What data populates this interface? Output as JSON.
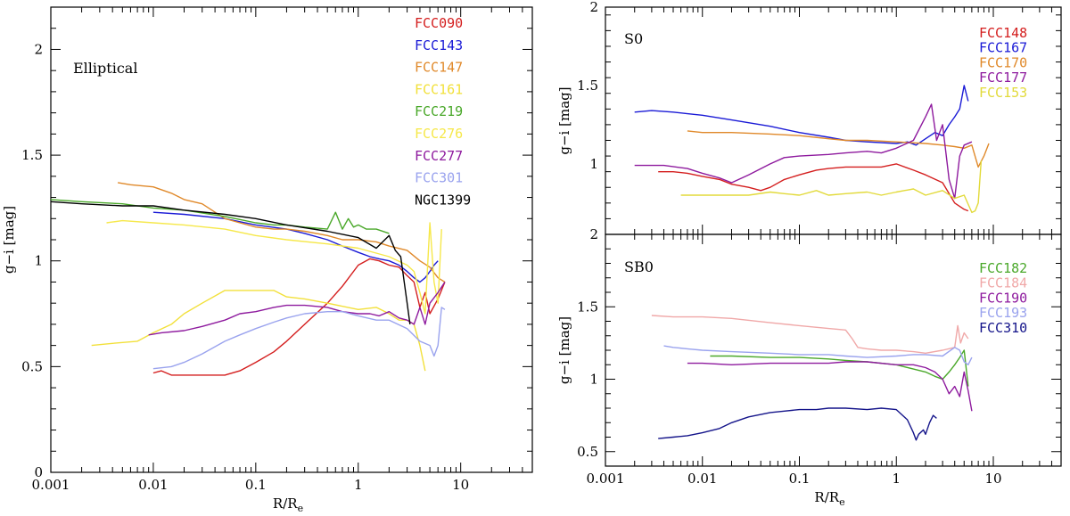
{
  "chart_data": [
    {
      "type": "line",
      "panel_label": "Elliptical",
      "xlabel": "R/R",
      "xlabel_sub": "e",
      "ylabel": "g−i [mag]",
      "xscale": "log",
      "xlim": [
        0.001,
        50
      ],
      "ylim": [
        0,
        2.2
      ],
      "xticks": [
        0.001,
        0.01,
        0.1,
        1,
        10
      ],
      "xtick_labels": [
        "0.001",
        "0.01",
        "0.1",
        "1",
        "10"
      ],
      "yticks": [
        0,
        0.5,
        1,
        1.5,
        2
      ],
      "ytick_labels": [
        "0",
        "0.5",
        "1",
        "1.5",
        "2"
      ],
      "legend_position": "top-right",
      "series": [
        {
          "name": "FCC090",
          "color": "#d41e1e",
          "x": [
            0.01,
            0.012,
            0.015,
            0.02,
            0.03,
            0.05,
            0.07,
            0.1,
            0.15,
            0.2,
            0.3,
            0.5,
            0.7,
            1.0,
            1.3,
            1.6,
            2.0,
            2.5,
            3.0,
            3.5,
            4.0,
            4.5,
            5.0,
            6.0,
            7.0
          ],
          "y": [
            0.47,
            0.48,
            0.46,
            0.46,
            0.46,
            0.46,
            0.48,
            0.52,
            0.57,
            0.62,
            0.7,
            0.8,
            0.88,
            0.98,
            1.01,
            1.0,
            0.98,
            0.97,
            0.93,
            0.9,
            0.78,
            0.85,
            0.75,
            0.82,
            0.9
          ]
        },
        {
          "name": "FCC143",
          "color": "#1a1ad6",
          "x": [
            0.01,
            0.02,
            0.05,
            0.1,
            0.2,
            0.3,
            0.5,
            0.7,
            1.0,
            1.3,
            1.6,
            2.0,
            2.5,
            3.0,
            3.5,
            4.0,
            4.5,
            5.0,
            5.5,
            6.0
          ],
          "y": [
            1.23,
            1.22,
            1.2,
            1.17,
            1.15,
            1.13,
            1.1,
            1.07,
            1.04,
            1.02,
            1.01,
            1.0,
            0.98,
            0.95,
            0.92,
            0.9,
            0.92,
            0.95,
            0.98,
            1.0
          ]
        },
        {
          "name": "FCC147",
          "color": "#e0892a",
          "x": [
            0.0045,
            0.006,
            0.01,
            0.015,
            0.02,
            0.03,
            0.05,
            0.07,
            0.1,
            0.15,
            0.2,
            0.3,
            0.5,
            0.7,
            1.0,
            1.5,
            2.0,
            3.0,
            4.0,
            5.0,
            6.0,
            7.0
          ],
          "y": [
            1.37,
            1.36,
            1.35,
            1.32,
            1.29,
            1.27,
            1.2,
            1.18,
            1.16,
            1.15,
            1.15,
            1.14,
            1.12,
            1.1,
            1.1,
            1.09,
            1.07,
            1.05,
            1.0,
            0.97,
            0.92,
            0.9
          ]
        },
        {
          "name": "FCC161",
          "color": "#f2e03a",
          "x": [
            0.0025,
            0.004,
            0.007,
            0.01,
            0.015,
            0.02,
            0.03,
            0.05,
            0.07,
            0.1,
            0.15,
            0.2,
            0.3,
            0.5,
            1.0,
            1.5,
            2.0,
            2.5,
            3.0,
            3.5,
            4.0,
            4.5
          ],
          "y": [
            0.6,
            0.61,
            0.62,
            0.66,
            0.7,
            0.75,
            0.8,
            0.86,
            0.86,
            0.86,
            0.86,
            0.83,
            0.82,
            0.8,
            0.77,
            0.78,
            0.75,
            0.72,
            0.72,
            0.7,
            0.6,
            0.48
          ]
        },
        {
          "name": "FCC219",
          "color": "#4aa82a",
          "x": [
            0.001,
            0.002,
            0.005,
            0.01,
            0.02,
            0.05,
            0.1,
            0.15,
            0.2,
            0.3,
            0.5,
            0.6,
            0.7,
            0.8,
            0.9,
            1.0,
            1.2,
            1.5,
            2.0
          ],
          "y": [
            1.29,
            1.28,
            1.27,
            1.25,
            1.24,
            1.21,
            1.18,
            1.17,
            1.17,
            1.16,
            1.15,
            1.23,
            1.15,
            1.2,
            1.16,
            1.17,
            1.15,
            1.15,
            1.13
          ]
        },
        {
          "name": "FCC276",
          "color": "#f6e84a",
          "x": [
            0.0035,
            0.005,
            0.01,
            0.02,
            0.05,
            0.1,
            0.2,
            0.5,
            1.0,
            2.0,
            3.0,
            3.5,
            4.0,
            4.5,
            5.0,
            5.5,
            6.0,
            6.5
          ],
          "y": [
            1.18,
            1.19,
            1.18,
            1.17,
            1.15,
            1.12,
            1.1,
            1.08,
            1.06,
            1.02,
            0.98,
            0.95,
            0.85,
            0.75,
            1.18,
            0.9,
            0.8,
            1.15
          ]
        },
        {
          "name": "FCC277",
          "color": "#8e1a9e",
          "x": [
            0.009,
            0.012,
            0.02,
            0.03,
            0.05,
            0.07,
            0.1,
            0.15,
            0.2,
            0.3,
            0.5,
            0.7,
            1.0,
            1.3,
            1.6,
            2.0,
            2.5,
            3.0,
            3.5,
            4.0,
            4.5,
            5.0,
            6.0,
            7.0
          ],
          "y": [
            0.65,
            0.66,
            0.67,
            0.69,
            0.72,
            0.75,
            0.76,
            0.78,
            0.79,
            0.79,
            0.78,
            0.76,
            0.75,
            0.75,
            0.74,
            0.76,
            0.73,
            0.72,
            0.7,
            0.78,
            0.7,
            0.8,
            0.85,
            0.9
          ]
        },
        {
          "name": "FCC301",
          "color": "#9aa3ee",
          "x": [
            0.01,
            0.015,
            0.02,
            0.03,
            0.05,
            0.07,
            0.1,
            0.15,
            0.2,
            0.3,
            0.5,
            0.7,
            1.0,
            1.5,
            2.0,
            3.0,
            4.0,
            5.0,
            5.5,
            6.0,
            6.5,
            7.0
          ],
          "y": [
            0.49,
            0.5,
            0.52,
            0.56,
            0.62,
            0.65,
            0.68,
            0.71,
            0.73,
            0.75,
            0.76,
            0.76,
            0.74,
            0.72,
            0.72,
            0.68,
            0.62,
            0.6,
            0.55,
            0.6,
            0.78,
            0.77
          ]
        },
        {
          "name": "NGC1399",
          "color": "#000000",
          "x": [
            0.001,
            0.002,
            0.005,
            0.01,
            0.02,
            0.05,
            0.1,
            0.2,
            0.5,
            1.0,
            1.5,
            2.0,
            2.3,
            2.6,
            3.0,
            3.2
          ],
          "y": [
            1.28,
            1.27,
            1.26,
            1.26,
            1.24,
            1.22,
            1.2,
            1.17,
            1.14,
            1.11,
            1.06,
            1.12,
            1.05,
            1.02,
            0.8,
            0.7
          ]
        }
      ]
    },
    {
      "type": "line",
      "panel_label": "S0",
      "xlabel": "",
      "ylabel": "g−i [mag]",
      "xscale": "log",
      "xlim": [
        0.001,
        50
      ],
      "ylim": [
        0.55,
        2.0
      ],
      "xticks": [
        0.001,
        0.01,
        0.1,
        1,
        10
      ],
      "yticks": [
        1,
        1.5,
        2
      ],
      "ytick_labels": [
        "1",
        "1.5",
        "2"
      ],
      "legend_position": "top-right",
      "series": [
        {
          "name": "FCC148",
          "color": "#d41e1e",
          "x": [
            0.0035,
            0.005,
            0.007,
            0.01,
            0.015,
            0.02,
            0.03,
            0.04,
            0.05,
            0.07,
            0.1,
            0.15,
            0.2,
            0.3,
            0.5,
            0.7,
            1.0,
            1.5,
            2.0,
            3.0,
            4.0,
            5.0,
            5.5
          ],
          "y": [
            0.95,
            0.95,
            0.94,
            0.92,
            0.9,
            0.87,
            0.85,
            0.83,
            0.85,
            0.9,
            0.93,
            0.96,
            0.97,
            0.98,
            0.98,
            0.98,
            1.0,
            0.96,
            0.93,
            0.88,
            0.75,
            0.71,
            0.7
          ]
        },
        {
          "name": "FCC167",
          "color": "#1a1ad6",
          "x": [
            0.002,
            0.003,
            0.005,
            0.007,
            0.01,
            0.02,
            0.05,
            0.1,
            0.2,
            0.3,
            0.5,
            1.0,
            1.3,
            1.6,
            2.0,
            2.5,
            3.0,
            3.5,
            4.0,
            4.5,
            5.0,
            5.5
          ],
          "y": [
            1.33,
            1.34,
            1.33,
            1.32,
            1.31,
            1.28,
            1.24,
            1.2,
            1.17,
            1.15,
            1.14,
            1.13,
            1.14,
            1.12,
            1.16,
            1.2,
            1.18,
            1.25,
            1.3,
            1.35,
            1.5,
            1.4
          ]
        },
        {
          "name": "FCC170",
          "color": "#e0892a",
          "x": [
            0.007,
            0.01,
            0.02,
            0.05,
            0.1,
            0.2,
            0.3,
            0.5,
            1.0,
            2.0,
            3.0,
            4.0,
            5.0,
            6.0,
            7.0,
            8.0,
            9.0
          ],
          "y": [
            1.21,
            1.2,
            1.2,
            1.19,
            1.18,
            1.16,
            1.15,
            1.15,
            1.14,
            1.13,
            1.12,
            1.11,
            1.1,
            1.12,
            0.98,
            1.05,
            1.13
          ]
        },
        {
          "name": "FCC177",
          "color": "#8e1a9e",
          "x": [
            0.002,
            0.004,
            0.007,
            0.01,
            0.015,
            0.02,
            0.03,
            0.05,
            0.07,
            0.1,
            0.2,
            0.3,
            0.5,
            0.7,
            1.0,
            1.5,
            2.0,
            2.3,
            2.6,
            3.0,
            3.5,
            4.0,
            4.5,
            5.0,
            6.0
          ],
          "y": [
            0.99,
            0.99,
            0.97,
            0.94,
            0.91,
            0.88,
            0.93,
            1.0,
            1.04,
            1.05,
            1.06,
            1.07,
            1.08,
            1.07,
            1.1,
            1.15,
            1.3,
            1.38,
            1.15,
            1.25,
            0.9,
            0.78,
            1.05,
            1.12,
            1.14
          ]
        },
        {
          "name": "FCC153",
          "color": "#e2da3a",
          "x": [
            0.006,
            0.01,
            0.02,
            0.03,
            0.05,
            0.07,
            0.1,
            0.15,
            0.2,
            0.3,
            0.5,
            0.7,
            1.0,
            1.5,
            2.0,
            3.0,
            4.0,
            5.0,
            6.0,
            6.5,
            7.0,
            7.5
          ],
          "y": [
            0.8,
            0.8,
            0.8,
            0.8,
            0.82,
            0.81,
            0.8,
            0.83,
            0.8,
            0.81,
            0.82,
            0.8,
            0.82,
            0.84,
            0.8,
            0.83,
            0.78,
            0.8,
            0.69,
            0.7,
            0.75,
            1.02
          ]
        }
      ]
    },
    {
      "type": "line",
      "panel_label": "SB0",
      "xlabel": "R/R",
      "xlabel_sub": "e",
      "ylabel": "g−i [mag]",
      "xscale": "log",
      "xlim": [
        0.001,
        50
      ],
      "ylim": [
        0.4,
        2.0
      ],
      "xticks": [
        0.001,
        0.01,
        0.1,
        1,
        10
      ],
      "xtick_labels": [
        "0.001",
        "0.01",
        "0.1",
        "1",
        "10"
      ],
      "yticks": [
        0.5,
        1,
        1.5,
        2
      ],
      "ytick_labels": [
        "0.5",
        "1",
        "1.5",
        "2"
      ],
      "legend_position": "top-right",
      "series": [
        {
          "name": "FCC182",
          "color": "#4aa82a",
          "x": [
            0.012,
            0.02,
            0.05,
            0.1,
            0.2,
            0.3,
            0.5,
            1.0,
            1.5,
            2.0,
            2.5,
            3.0,
            3.5,
            4.0,
            4.5,
            5.0,
            5.5
          ],
          "y": [
            1.16,
            1.16,
            1.15,
            1.15,
            1.14,
            1.13,
            1.12,
            1.1,
            1.07,
            1.05,
            1.02,
            1.0,
            1.05,
            1.1,
            1.15,
            1.2,
            0.95
          ]
        },
        {
          "name": "FCC184",
          "color": "#f0a8a8",
          "x": [
            0.003,
            0.005,
            0.01,
            0.02,
            0.05,
            0.1,
            0.2,
            0.3,
            0.35,
            0.4,
            0.5,
            0.7,
            1.0,
            1.5,
            2.0,
            3.0,
            4.0,
            4.3,
            4.6,
            5.0,
            5.5
          ],
          "y": [
            1.44,
            1.43,
            1.43,
            1.42,
            1.39,
            1.37,
            1.35,
            1.34,
            1.28,
            1.22,
            1.21,
            1.2,
            1.2,
            1.19,
            1.18,
            1.2,
            1.22,
            1.37,
            1.25,
            1.32,
            1.28
          ]
        },
        {
          "name": "FCC190",
          "color": "#8e1a9e",
          "x": [
            0.007,
            0.01,
            0.02,
            0.05,
            0.1,
            0.2,
            0.3,
            0.5,
            1.0,
            1.5,
            2.0,
            2.5,
            3.0,
            3.5,
            4.0,
            4.5,
            5.0,
            5.5,
            6.0
          ],
          "y": [
            1.11,
            1.11,
            1.1,
            1.11,
            1.11,
            1.11,
            1.12,
            1.12,
            1.1,
            1.1,
            1.08,
            1.05,
            1.0,
            0.9,
            0.95,
            0.88,
            1.05,
            0.92,
            0.78
          ]
        },
        {
          "name": "FCC193",
          "color": "#9aa3ee",
          "x": [
            0.004,
            0.005,
            0.007,
            0.01,
            0.02,
            0.05,
            0.1,
            0.2,
            0.3,
            0.5,
            1.0,
            1.5,
            2.0,
            3.0,
            4.0,
            4.5,
            5.0,
            5.5,
            6.0
          ],
          "y": [
            1.23,
            1.22,
            1.21,
            1.2,
            1.19,
            1.18,
            1.17,
            1.17,
            1.16,
            1.15,
            1.16,
            1.17,
            1.17,
            1.16,
            1.22,
            1.2,
            1.12,
            1.1,
            1.15
          ]
        },
        {
          "name": "FCC310",
          "color": "#14148a",
          "x": [
            0.0035,
            0.005,
            0.007,
            0.01,
            0.015,
            0.02,
            0.03,
            0.05,
            0.07,
            0.1,
            0.15,
            0.2,
            0.3,
            0.5,
            0.7,
            1.0,
            1.3,
            1.5,
            1.6,
            1.7,
            1.9,
            2.0,
            2.2,
            2.4,
            2.6
          ],
          "y": [
            0.59,
            0.6,
            0.61,
            0.63,
            0.66,
            0.7,
            0.74,
            0.77,
            0.78,
            0.79,
            0.79,
            0.8,
            0.8,
            0.79,
            0.8,
            0.79,
            0.72,
            0.63,
            0.58,
            0.62,
            0.65,
            0.62,
            0.7,
            0.75,
            0.73
          ]
        }
      ]
    }
  ]
}
